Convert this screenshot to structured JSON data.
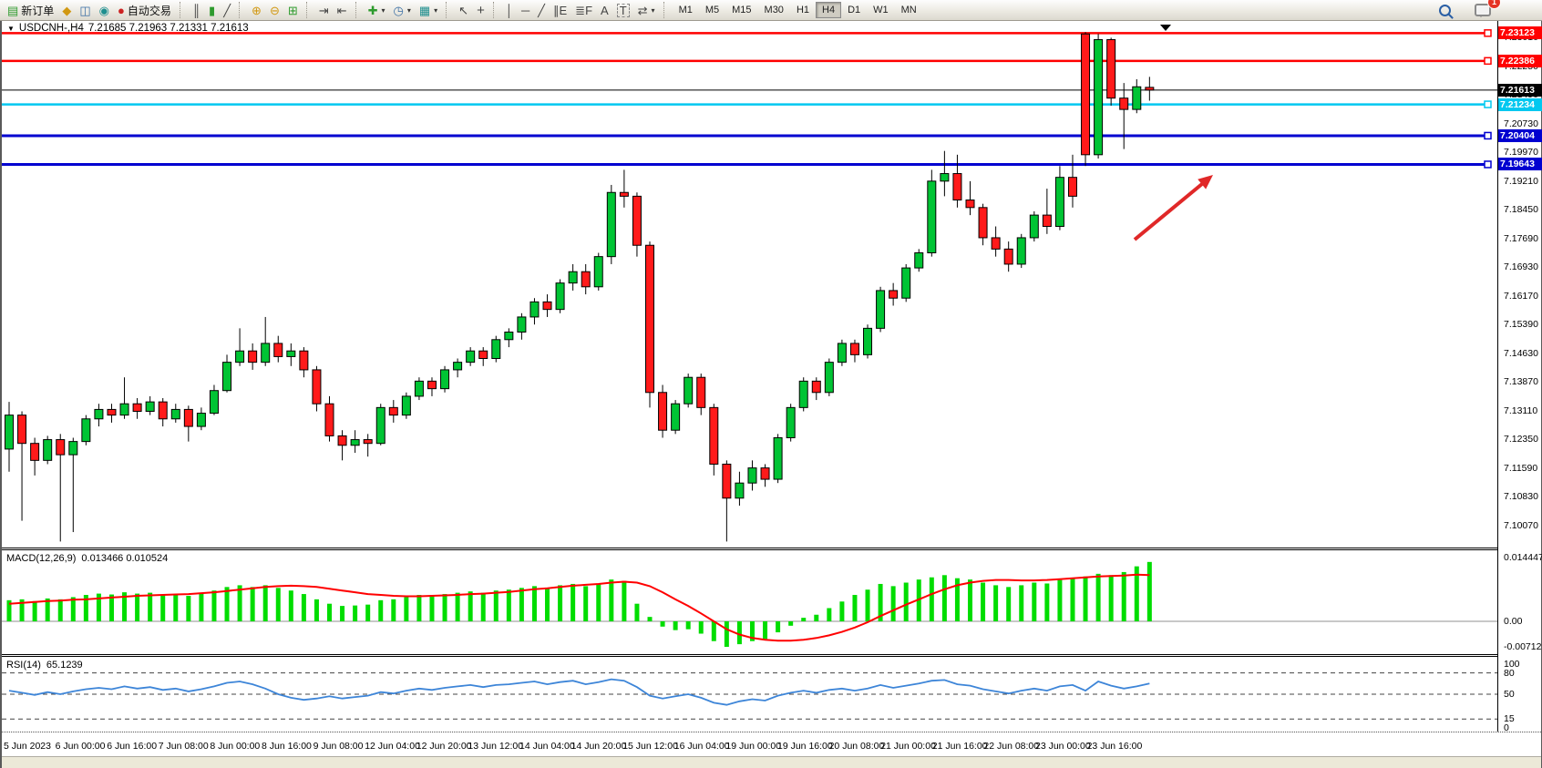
{
  "toolbar": {
    "dropdown_glyph": "▾",
    "notification_badge": "1",
    "buttons": {
      "new_order": {
        "glyph": "▤",
        "label": "新订单"
      },
      "metaeditor": {
        "glyph": "◆"
      },
      "market_watch": {
        "glyph": "◫"
      },
      "signals": {
        "glyph": "◉"
      },
      "autotrading": {
        "glyph": "●",
        "label": "自动交易"
      },
      "bars_chart": {
        "glyph": "║"
      },
      "candles_chart": {
        "glyph": "▮"
      },
      "line_chart": {
        "glyph": "╱"
      },
      "zoom_in": {
        "glyph": "⊕"
      },
      "zoom_out": {
        "glyph": "⊖"
      },
      "tile_windows": {
        "glyph": "⊞"
      },
      "auto_scroll": {
        "glyph": "⇥"
      },
      "chart_shift": {
        "glyph": "⇤"
      },
      "indicators": {
        "glyph": "✚"
      },
      "periods": {
        "glyph": "◷"
      },
      "templates": {
        "glyph": "▦"
      },
      "cursor": {
        "glyph": "↖"
      },
      "crosshair": {
        "glyph": "+"
      },
      "vline": {
        "glyph": "│"
      },
      "hline": {
        "glyph": "─"
      },
      "trendline": {
        "glyph": "╱"
      },
      "channel": {
        "glyph": "∥E"
      },
      "fibo": {
        "glyph": "≣F"
      },
      "text": {
        "glyph": "A"
      },
      "label": {
        "glyph": "T"
      },
      "arrows": {
        "glyph": "⇄"
      }
    },
    "timeframes": {
      "items": [
        "M1",
        "M5",
        "M15",
        "M30",
        "H1",
        "H4",
        "D1",
        "W1",
        "MN"
      ],
      "active": "H4"
    }
  },
  "chart": {
    "symbol_dropdown_glyph": "▼",
    "symbol_title": "USDCNH-,H4",
    "ohlc": "7.21685 7.21963 7.21331 7.21613"
  },
  "chart_data": {
    "type": "candlestick",
    "symbol": "USDCNH-",
    "timeframe": "H4",
    "title": "USDCNH-,H4 7.21685 7.21963 7.21331 7.21613",
    "current_price": "7.21613",
    "colors": {
      "up": "#00c434",
      "down": "#ff1a1a",
      "wick": "#000000"
    },
    "price_axis_labels": [
      "7.23010",
      "7.22250",
      "7.21490",
      "7.20730",
      "7.19970",
      "7.19210",
      "7.18450",
      "7.17690",
      "7.16930",
      "7.16170",
      "7.15390",
      "7.14630",
      "7.13870",
      "7.13110",
      "7.12350",
      "7.11590",
      "7.10830",
      "7.10070"
    ],
    "time_labels": [
      "5 Jun 2023",
      "6 Jun 00:00",
      "6 Jun 16:00",
      "7 Jun 08:00",
      "8 Jun 00:00",
      "8 Jun 16:00",
      "9 Jun 08:00",
      "12 Jun 04:00",
      "12 Jun 20:00",
      "13 Jun 12:00",
      "14 Jun 04:00",
      "14 Jun 20:00",
      "15 Jun 12:00",
      "16 Jun 04:00",
      "19 Jun 00:00",
      "19 Jun 16:00",
      "20 Jun 08:00",
      "21 Jun 00:00",
      "21 Jun 16:00",
      "22 Jun 08:00",
      "23 Jun 00:00",
      "23 Jun 16:00"
    ],
    "levels": [
      {
        "price": 7.23123,
        "label": "7.23123",
        "color": "#ff0000",
        "width": 2.5
      },
      {
        "price": 7.22386,
        "label": "7.22386",
        "color": "#ff0000",
        "width": 2.5
      },
      {
        "price": 7.21234,
        "label": "7.21234",
        "color": "#00c8f0",
        "width": 2.5
      },
      {
        "price": 7.20404,
        "label": "7.20404",
        "color": "#0000d0",
        "width": 3
      },
      {
        "price": 7.19643,
        "label": "7.19643",
        "color": "#0000d0",
        "width": 3
      }
    ],
    "bid_line": {
      "price": 7.21613,
      "label": "7.21613",
      "color": "#000000",
      "width": 1
    },
    "candles": [
      [
        7.121,
        7.1335,
        7.115,
        7.13
      ],
      [
        7.13,
        7.131,
        7.102,
        7.1225
      ],
      [
        7.1225,
        7.124,
        7.114,
        7.118
      ],
      [
        7.118,
        7.1245,
        7.117,
        7.1235
      ],
      [
        7.1235,
        7.125,
        7.0965,
        7.1195
      ],
      [
        7.1195,
        7.124,
        7.099,
        7.123
      ],
      [
        7.123,
        7.13,
        7.122,
        7.129
      ],
      [
        7.129,
        7.133,
        7.127,
        7.1315
      ],
      [
        7.1315,
        7.133,
        7.128,
        7.13
      ],
      [
        7.13,
        7.14,
        7.129,
        7.133
      ],
      [
        7.133,
        7.1345,
        7.129,
        7.131
      ],
      [
        7.131,
        7.135,
        7.13,
        7.1335
      ],
      [
        7.1335,
        7.1345,
        7.127,
        7.129
      ],
      [
        7.129,
        7.133,
        7.128,
        7.1315
      ],
      [
        7.1315,
        7.1325,
        7.123,
        7.127
      ],
      [
        7.127,
        7.132,
        7.126,
        7.1305
      ],
      [
        7.1305,
        7.138,
        7.13,
        7.1365
      ],
      [
        7.1365,
        7.146,
        7.136,
        7.144
      ],
      [
        7.144,
        7.153,
        7.143,
        7.147
      ],
      [
        7.147,
        7.149,
        7.142,
        7.144
      ],
      [
        7.144,
        7.156,
        7.143,
        7.149
      ],
      [
        7.149,
        7.151,
        7.144,
        7.1455
      ],
      [
        7.1455,
        7.149,
        7.143,
        7.147
      ],
      [
        7.147,
        7.148,
        7.14,
        7.142
      ],
      [
        7.142,
        7.143,
        7.131,
        7.133
      ],
      [
        7.133,
        7.135,
        7.123,
        7.1245
      ],
      [
        7.1245,
        7.126,
        7.118,
        7.122
      ],
      [
        7.122,
        7.126,
        7.12,
        7.1235
      ],
      [
        7.1235,
        7.125,
        7.119,
        7.1225
      ],
      [
        7.1225,
        7.133,
        7.122,
        7.132
      ],
      [
        7.132,
        7.134,
        7.128,
        7.13
      ],
      [
        7.13,
        7.136,
        7.129,
        7.135
      ],
      [
        7.135,
        7.14,
        7.134,
        7.139
      ],
      [
        7.139,
        7.14,
        7.135,
        7.137
      ],
      [
        7.137,
        7.143,
        7.136,
        7.142
      ],
      [
        7.142,
        7.145,
        7.14,
        7.144
      ],
      [
        7.144,
        7.148,
        7.143,
        7.147
      ],
      [
        7.147,
        7.148,
        7.143,
        7.145
      ],
      [
        7.145,
        7.151,
        7.144,
        7.15
      ],
      [
        7.15,
        7.153,
        7.148,
        7.152
      ],
      [
        7.152,
        7.157,
        7.15,
        7.156
      ],
      [
        7.156,
        7.161,
        7.154,
        7.16
      ],
      [
        7.16,
        7.162,
        7.156,
        7.158
      ],
      [
        7.158,
        7.166,
        7.157,
        7.165
      ],
      [
        7.165,
        7.17,
        7.163,
        7.168
      ],
      [
        7.168,
        7.17,
        7.162,
        7.164
      ],
      [
        7.164,
        7.173,
        7.163,
        7.172
      ],
      [
        7.172,
        7.191,
        7.17,
        7.189
      ],
      [
        7.189,
        7.195,
        7.185,
        7.188
      ],
      [
        7.188,
        7.189,
        7.172,
        7.175
      ],
      [
        7.175,
        7.176,
        7.132,
        7.136
      ],
      [
        7.136,
        7.138,
        7.124,
        7.126
      ],
      [
        7.126,
        7.134,
        7.125,
        7.133
      ],
      [
        7.133,
        7.141,
        7.132,
        7.14
      ],
      [
        7.14,
        7.141,
        7.13,
        7.132
      ],
      [
        7.132,
        7.133,
        7.114,
        7.117
      ],
      [
        7.117,
        7.118,
        7.0965,
        7.108
      ],
      [
        7.108,
        7.115,
        7.106,
        7.112
      ],
      [
        7.112,
        7.118,
        7.11,
        7.116
      ],
      [
        7.116,
        7.117,
        7.111,
        7.113
      ],
      [
        7.113,
        7.125,
        7.112,
        7.124
      ],
      [
        7.124,
        7.133,
        7.123,
        7.132
      ],
      [
        7.132,
        7.14,
        7.131,
        7.139
      ],
      [
        7.139,
        7.14,
        7.134,
        7.136
      ],
      [
        7.136,
        7.145,
        7.135,
        7.144
      ],
      [
        7.144,
        7.15,
        7.143,
        7.149
      ],
      [
        7.149,
        7.15,
        7.144,
        7.146
      ],
      [
        7.146,
        7.154,
        7.145,
        7.153
      ],
      [
        7.153,
        7.164,
        7.152,
        7.163
      ],
      [
        7.163,
        7.165,
        7.159,
        7.161
      ],
      [
        7.161,
        7.17,
        7.16,
        7.169
      ],
      [
        7.169,
        7.174,
        7.168,
        7.173
      ],
      [
        7.173,
        7.195,
        7.172,
        7.192
      ],
      [
        7.192,
        7.2,
        7.188,
        7.194
      ],
      [
        7.194,
        7.199,
        7.185,
        7.187
      ],
      [
        7.187,
        7.192,
        7.183,
        7.185
      ],
      [
        7.185,
        7.186,
        7.175,
        7.177
      ],
      [
        7.177,
        7.18,
        7.172,
        7.174
      ],
      [
        7.174,
        7.176,
        7.168,
        7.17
      ],
      [
        7.17,
        7.178,
        7.169,
        7.177
      ],
      [
        7.177,
        7.184,
        7.176,
        7.183
      ],
      [
        7.183,
        7.19,
        7.178,
        7.18
      ],
      [
        7.18,
        7.196,
        7.179,
        7.193
      ],
      [
        7.193,
        7.199,
        7.185,
        7.188
      ],
      [
        7.231,
        7.2315,
        7.196,
        7.199
      ],
      [
        7.199,
        7.231,
        7.198,
        7.2295
      ],
      [
        7.2295,
        7.23,
        7.212,
        7.214
      ],
      [
        7.214,
        7.218,
        7.2005,
        7.211
      ],
      [
        7.211,
        7.219,
        7.21,
        7.217
      ],
      [
        7.21685,
        7.21963,
        7.21331,
        7.21613
      ]
    ],
    "macd": {
      "label": "MACD(12,26,9)",
      "values_label": "0.013466 0.010524",
      "axis": [
        "0.014447",
        "0.00",
        "-0.007123"
      ],
      "hist_color": "#00dd00",
      "signal_color": "#ff0000",
      "hist": [
        0.0048,
        0.005,
        0.0046,
        0.0052,
        0.005,
        0.0055,
        0.006,
        0.0063,
        0.0061,
        0.0066,
        0.0063,
        0.0065,
        0.006,
        0.0062,
        0.0058,
        0.0063,
        0.007,
        0.0078,
        0.0082,
        0.0078,
        0.0082,
        0.0076,
        0.007,
        0.0062,
        0.005,
        0.004,
        0.0035,
        0.0036,
        0.0038,
        0.0048,
        0.005,
        0.0055,
        0.006,
        0.0058,
        0.0062,
        0.0065,
        0.0068,
        0.0065,
        0.007,
        0.0072,
        0.0076,
        0.008,
        0.0076,
        0.0082,
        0.0085,
        0.008,
        0.0086,
        0.0095,
        0.0092,
        0.004,
        0.001,
        -0.0012,
        -0.002,
        -0.0018,
        -0.0028,
        -0.0045,
        -0.0058,
        -0.0052,
        -0.0045,
        -0.004,
        -0.0025,
        -0.001,
        0.0008,
        0.0015,
        0.003,
        0.0045,
        0.006,
        0.0072,
        0.0085,
        0.008,
        0.0088,
        0.0095,
        0.01,
        0.0105,
        0.0098,
        0.0095,
        0.0088,
        0.0082,
        0.0078,
        0.0082,
        0.0088,
        0.0086,
        0.0094,
        0.0098,
        0.0102,
        0.0108,
        0.0105,
        0.0112,
        0.0125,
        0.0135
      ],
      "signal": [
        0.004,
        0.0042,
        0.0044,
        0.0046,
        0.0047,
        0.0049,
        0.005,
        0.0052,
        0.0054,
        0.0056,
        0.0058,
        0.0059,
        0.006,
        0.0061,
        0.0062,
        0.0064,
        0.0066,
        0.0069,
        0.0072,
        0.0075,
        0.0078,
        0.008,
        0.0081,
        0.008,
        0.0078,
        0.0074,
        0.007,
        0.0066,
        0.0062,
        0.006,
        0.0058,
        0.0057,
        0.0057,
        0.0058,
        0.0059,
        0.006,
        0.0062,
        0.0063,
        0.0065,
        0.0067,
        0.007,
        0.0073,
        0.0075,
        0.0078,
        0.0081,
        0.0083,
        0.0085,
        0.0088,
        0.009,
        0.0088,
        0.008,
        0.0066,
        0.005,
        0.0035,
        0.0018,
        0.0,
        -0.0018,
        -0.003,
        -0.0038,
        -0.0042,
        -0.0044,
        -0.0044,
        -0.0042,
        -0.0038,
        -0.0032,
        -0.0024,
        -0.0014,
        -0.0002,
        0.0012,
        0.0025,
        0.0038,
        0.005,
        0.0062,
        0.0073,
        0.0082,
        0.0088,
        0.0092,
        0.0094,
        0.0094,
        0.0093,
        0.0093,
        0.0094,
        0.0096,
        0.0098,
        0.01,
        0.0102,
        0.0103,
        0.0104,
        0.0106,
        0.0105
      ]
    },
    "rsi": {
      "label": "RSI(14)",
      "value_label": "65.1239",
      "axis": [
        "100",
        "80",
        "50",
        "15",
        "0"
      ],
      "levels": [
        80,
        50,
        15
      ],
      "color": "#3d85d8",
      "points": [
        55,
        52,
        49,
        53,
        50,
        54,
        57,
        59,
        57,
        61,
        58,
        60,
        56,
        58,
        54,
        57,
        61,
        66,
        68,
        64,
        58,
        50,
        45,
        42,
        44,
        47,
        44,
        46,
        48,
        53,
        51,
        55,
        58,
        56,
        59,
        61,
        63,
        60,
        63,
        64,
        66,
        68,
        64,
        67,
        69,
        64,
        67,
        71,
        69,
        60,
        48,
        44,
        47,
        50,
        45,
        38,
        35,
        40,
        43,
        41,
        48,
        52,
        55,
        52,
        56,
        58,
        55,
        58,
        63,
        59,
        62,
        65,
        69,
        70,
        64,
        62,
        57,
        54,
        51,
        55,
        58,
        55,
        61,
        63,
        55,
        68,
        62,
        58,
        61,
        65.1
      ]
    },
    "annotation_arrow": {
      "from": [
        1243,
        241
      ],
      "to": [
        1329,
        170
      ],
      "color": "#e02828"
    }
  }
}
